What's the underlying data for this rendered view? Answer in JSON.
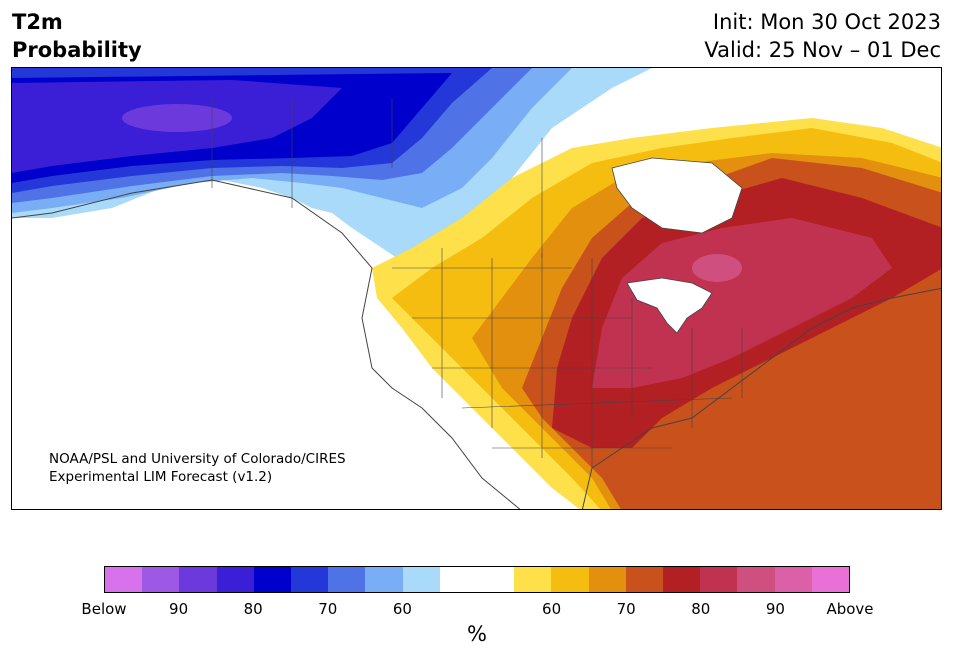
{
  "title": {
    "line1": "T2m",
    "line2": "Probability"
  },
  "info": {
    "init": "Init: Mon 30 Oct 2023",
    "valid": "Valid: 25 Nov – 01 Dec"
  },
  "credit": {
    "line1": "NOAA/PSL and University of Colorado/CIRES",
    "line2": "Experimental LIM Forecast (v1.2)"
  },
  "colorbar": {
    "colors": [
      "#d872ec",
      "#9e58e6",
      "#6c3adc",
      "#3a1fd6",
      "#0000cc",
      "#2437d9",
      "#4f73e6",
      "#79adf5",
      "#aadafa",
      "#ffffff",
      "#ffffff",
      "#fde04a",
      "#f5bd10",
      "#e2900e",
      "#c9511c",
      "#b32023",
      "#c13250",
      "#cf4f7f",
      "#dc60a8",
      "#e870d6"
    ],
    "tick_labels": [
      "Below",
      "90",
      "80",
      "70",
      "60",
      "60",
      "70",
      "80",
      "90",
      "Above"
    ],
    "unit": "%"
  },
  "map_colors": {
    "below_strong": "#3a1fd6",
    "below_deep": "#0000cc",
    "below_mid": "#2437d9",
    "below_light": "#4f73e6",
    "below_pale": "#79adf5",
    "below_faint": "#aadafa",
    "above_yellow": "#fde04a",
    "above_gold": "#f5bd10",
    "above_orange": "#e2900e",
    "above_rust": "#c9511c",
    "above_red": "#b32023",
    "above_crimson": "#c13250",
    "above_pink": "#cf4f7f"
  }
}
